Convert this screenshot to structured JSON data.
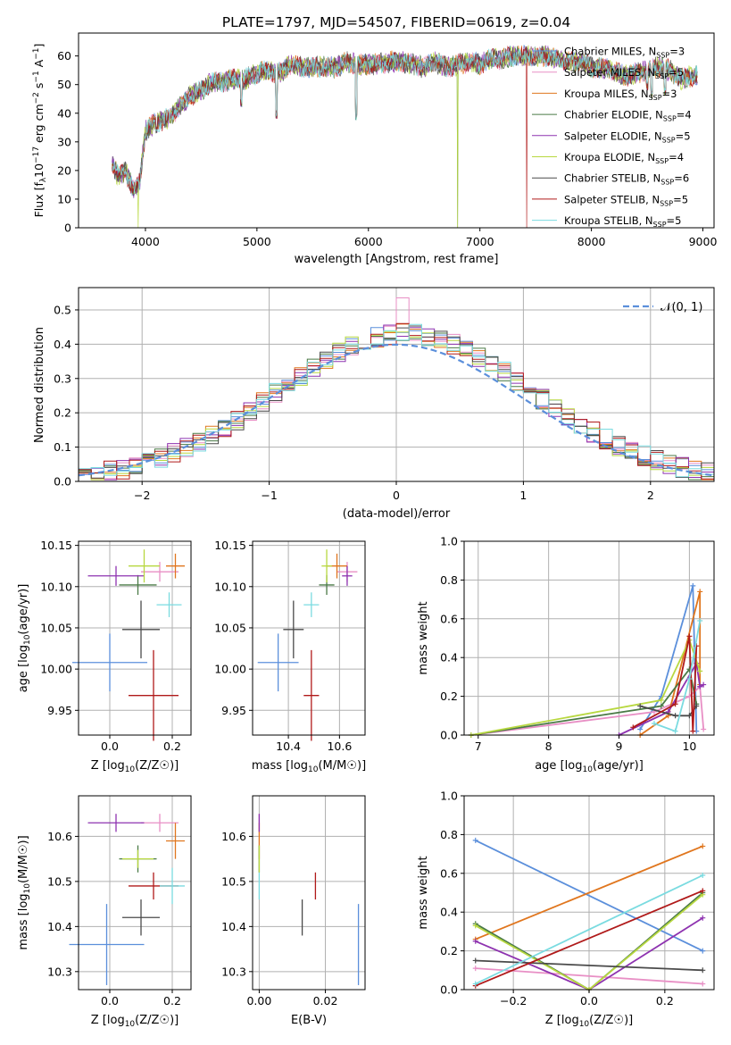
{
  "figure": {
    "title": "PLATE=1797, MJD=54507, FIBERID=0619, z=0.04"
  },
  "colors": {
    "chabrier_miles": "#5b8fdb",
    "salpeter_miles": "#e88fc5",
    "kroupa_miles": "#e0761e",
    "chabrier_elodie": "#4a7a46",
    "salpeter_elodie": "#8e33b0",
    "kroupa_elodie": "#b8d840",
    "chabrier_stelib": "#4a4a4a",
    "salpeter_stelib": "#b01a1a",
    "kroupa_stelib": "#7adbe0",
    "normal_curve": "#5b8fdb",
    "grid": "#b0b0b0"
  },
  "chart_data": [
    {
      "id": "spectrum",
      "type": "line",
      "xlabel": "wavelength [Angstrom, rest frame]",
      "ylabel": "Flux [f_λ 10^-17 erg cm^-2 s^-1 A^-1]",
      "xlim": [
        3400,
        9100
      ],
      "ylim": [
        0,
        68
      ],
      "xticks": [
        4000,
        5000,
        6000,
        7000,
        8000,
        9000
      ],
      "yticks": [
        0,
        10,
        20,
        30,
        40,
        50,
        60
      ],
      "grid": false,
      "legend_position": "right",
      "anchors": [
        [
          3700,
          22
        ],
        [
          3760,
          18
        ],
        [
          3820,
          20
        ],
        [
          3860,
          16
        ],
        [
          3900,
          13
        ],
        [
          3950,
          16
        ],
        [
          4000,
          34
        ],
        [
          4100,
          37
        ],
        [
          4200,
          38
        ],
        [
          4300,
          42
        ],
        [
          4400,
          46
        ],
        [
          4500,
          48
        ],
        [
          4600,
          51
        ],
        [
          4700,
          51
        ],
        [
          4800,
          52
        ],
        [
          4900,
          52
        ],
        [
          5000,
          54
        ],
        [
          5100,
          55
        ],
        [
          5200,
          54
        ],
        [
          5300,
          57
        ],
        [
          5400,
          56
        ],
        [
          5500,
          56
        ],
        [
          5600,
          56
        ],
        [
          5700,
          56
        ],
        [
          5800,
          58
        ],
        [
          5900,
          57
        ],
        [
          6000,
          57
        ],
        [
          6100,
          57
        ],
        [
          6200,
          58
        ],
        [
          6300,
          58
        ],
        [
          6400,
          57
        ],
        [
          6500,
          56
        ],
        [
          6600,
          58
        ],
        [
          6700,
          56
        ],
        [
          6800,
          57
        ],
        [
          6900,
          58
        ],
        [
          7000,
          57
        ],
        [
          7100,
          59
        ],
        [
          7200,
          59
        ],
        [
          7300,
          60
        ],
        [
          7400,
          60
        ],
        [
          7500,
          60
        ],
        [
          7600,
          60
        ],
        [
          7700,
          59
        ],
        [
          7800,
          58
        ],
        [
          7900,
          58
        ],
        [
          8000,
          56
        ],
        [
          8100,
          56
        ],
        [
          8200,
          55
        ],
        [
          8300,
          53
        ],
        [
          8400,
          54
        ],
        [
          8500,
          55
        ],
        [
          8600,
          56
        ],
        [
          8700,
          55
        ],
        [
          8800,
          52
        ],
        [
          8900,
          53
        ],
        [
          8950,
          53
        ]
      ],
      "dips": [
        [
          3935,
          0
        ],
        [
          4102,
          33
        ],
        [
          4861,
          42
        ],
        [
          5175,
          38
        ],
        [
          5890,
          37
        ],
        [
          6800,
          0
        ],
        [
          7420,
          0
        ],
        [
          8498,
          48
        ],
        [
          8542,
          45
        ],
        [
          8662,
          46
        ]
      ],
      "series": [
        {
          "name": "Chabrier MILES, N_SSP=3",
          "name_main": "Chabrier MILES, N",
          "name_sub": "SSP",
          "name_tail": "=3"
        },
        {
          "name": "Salpeter MILES, N_SSP=5",
          "name_main": "Salpeter MILES, N",
          "name_sub": "SSP",
          "name_tail": "=5"
        },
        {
          "name": "Kroupa MILES, N_SSP=3",
          "name_main": "Kroupa MILES, N",
          "name_sub": "SSP",
          "name_tail": "=3"
        },
        {
          "name": "Chabrier ELODIE, N_SSP=4",
          "name_main": "Chabrier ELODIE, N",
          "name_sub": "SSP",
          "name_tail": "=4"
        },
        {
          "name": "Salpeter ELODIE, N_SSP=5",
          "name_main": "Salpeter ELODIE, N",
          "name_sub": "SSP",
          "name_tail": "=5"
        },
        {
          "name": "Kroupa ELODIE, N_SSP=4",
          "name_main": "Kroupa ELODIE, N",
          "name_sub": "SSP",
          "name_tail": "=4"
        },
        {
          "name": "Chabrier STELIB, N_SSP=6",
          "name_main": "Chabrier STELIB, N",
          "name_sub": "SSP",
          "name_tail": "=6"
        },
        {
          "name": "Salpeter STELIB, N_SSP=5",
          "name_main": "Salpeter STELIB, N",
          "name_sub": "SSP",
          "name_tail": "=5"
        },
        {
          "name": "Kroupa STELIB, N_SSP=5",
          "name_main": "Kroupa STELIB, N",
          "name_sub": "SSP",
          "name_tail": "=5"
        }
      ]
    },
    {
      "id": "residuals",
      "type": "line",
      "xlabel": "(data-model)/error",
      "ylabel": "Normed distribution",
      "xlim": [
        -2.5,
        2.5
      ],
      "ylim": [
        0,
        0.565
      ],
      "xticks": [
        -2,
        -1,
        0,
        1,
        2
      ],
      "yticks": [
        0.0,
        0.1,
        0.2,
        0.3,
        0.4,
        0.5
      ],
      "grid": true,
      "legend_position": "top-right",
      "legend_label": "𝒩(0, 1)",
      "bin_width": 0.1,
      "bin_start": -2.5
    },
    {
      "id": "age_vs_Z",
      "type": "scatter",
      "xlabel_main": "Z [log",
      "xlabel_sub": "10",
      "xlabel_tail": "(Z/Z☉)]",
      "ylabel_main": "age  [log",
      "ylabel_sub": "10",
      "ylabel_tail": "(age/yr)]",
      "xlim": [
        -0.1,
        0.26
      ],
      "ylim": [
        9.92,
        10.155
      ],
      "xticks": [
        0.0,
        0.2
      ],
      "yticks": [
        9.95,
        10.0,
        10.05,
        10.1,
        10.15
      ],
      "grid": true,
      "points": [
        {
          "x": 0.0,
          "y": 10.008,
          "xerr": 0.12,
          "yerr": 0.035,
          "series": 0
        },
        {
          "x": 0.16,
          "y": 10.118,
          "xerr": 0.06,
          "yerr": 0.012,
          "series": 1
        },
        {
          "x": 0.21,
          "y": 10.125,
          "xerr": 0.03,
          "yerr": 0.015,
          "series": 2
        },
        {
          "x": 0.09,
          "y": 10.102,
          "xerr": 0.06,
          "yerr": 0.012,
          "series": 3
        },
        {
          "x": 0.02,
          "y": 10.113,
          "xerr": 0.09,
          "yerr": 0.012,
          "series": 4
        },
        {
          "x": 0.11,
          "y": 10.125,
          "xerr": 0.05,
          "yerr": 0.02,
          "series": 5
        },
        {
          "x": 0.1,
          "y": 10.048,
          "xerr": 0.06,
          "yerr": 0.035,
          "series": 6
        },
        {
          "x": 0.14,
          "y": 9.968,
          "xerr": 0.08,
          "yerr": 0.055,
          "series": 7
        },
        {
          "x": 0.19,
          "y": 10.078,
          "xerr": 0.04,
          "yerr": 0.015,
          "series": 8
        }
      ]
    },
    {
      "id": "age_vs_mass",
      "type": "scatter",
      "xlabel_main": "mass [log",
      "xlabel_sub": "10",
      "xlabel_tail": "(M/M☉)]",
      "xlim": [
        10.26,
        10.7
      ],
      "ylim": [
        9.92,
        10.155
      ],
      "xticks": [
        10.4,
        10.6
      ],
      "yticks": [
        9.95,
        10.0,
        10.05,
        10.1,
        10.15
      ],
      "grid": true,
      "points": [
        {
          "x": 10.36,
          "y": 10.008,
          "xerr": 0.08,
          "yerr": 0.035,
          "series": 0
        },
        {
          "x": 10.63,
          "y": 10.118,
          "xerr": 0.04,
          "yerr": 0.012,
          "series": 1
        },
        {
          "x": 10.59,
          "y": 10.125,
          "xerr": 0.04,
          "yerr": 0.015,
          "series": 2
        },
        {
          "x": 10.55,
          "y": 10.102,
          "xerr": 0.03,
          "yerr": 0.012,
          "series": 3
        },
        {
          "x": 10.63,
          "y": 10.113,
          "xerr": 0.02,
          "yerr": 0.012,
          "series": 4
        },
        {
          "x": 10.55,
          "y": 10.125,
          "xerr": 0.02,
          "yerr": 0.02,
          "series": 5
        },
        {
          "x": 10.42,
          "y": 10.048,
          "xerr": 0.04,
          "yerr": 0.035,
          "series": 6
        },
        {
          "x": 10.49,
          "y": 9.968,
          "xerr": 0.03,
          "yerr": 0.055,
          "series": 7
        },
        {
          "x": 10.49,
          "y": 10.078,
          "xerr": 0.03,
          "yerr": 0.015,
          "series": 8
        }
      ]
    },
    {
      "id": "weight_vs_age",
      "type": "line",
      "xlabel_main": "age  [log",
      "xlabel_sub": "10",
      "xlabel_tail": "(age/yr)]",
      "ylabel": "mass weight",
      "xlim": [
        6.8,
        10.35
      ],
      "ylim": [
        0,
        1.0
      ],
      "xticks": [
        7,
        8,
        9,
        10
      ],
      "yticks": [
        0.0,
        0.2,
        0.4,
        0.6,
        0.8,
        1.0
      ],
      "grid": true,
      "series": [
        {
          "x": [
            9.3,
            9.6,
            10.05,
            10.1
          ],
          "y": [
            0.03,
            0.2,
            0.77,
            0.02
          ]
        },
        {
          "x": [
            6.9,
            9.5,
            10.0,
            10.15,
            10.2
          ],
          "y": [
            0.0,
            0.12,
            0.2,
            0.25,
            0.03
          ]
        },
        {
          "x": [
            9.3,
            9.7,
            10.15,
            10.15
          ],
          "y": [
            0.0,
            0.1,
            0.74,
            0.26
          ]
        },
        {
          "x": [
            6.9,
            9.6,
            10.0,
            10.1
          ],
          "y": [
            0.0,
            0.15,
            0.34,
            0.16
          ]
        },
        {
          "x": [
            9.0,
            9.7,
            10.1,
            10.15,
            10.2
          ],
          "y": [
            0.0,
            0.12,
            0.37,
            0.25,
            0.26
          ]
        },
        {
          "x": [
            6.9,
            9.6,
            10.0,
            10.15
          ],
          "y": [
            0.0,
            0.18,
            0.49,
            0.33
          ]
        },
        {
          "x": [
            9.3,
            9.8,
            10.0,
            10.1
          ],
          "y": [
            0.15,
            0.1,
            0.1,
            0.15
          ]
        },
        {
          "x": [
            9.2,
            9.8,
            10.0,
            10.05,
            10.1
          ],
          "y": [
            0.04,
            0.16,
            0.51,
            0.02,
            0.46
          ]
        },
        {
          "x": [
            9.5,
            9.8,
            10.0,
            10.15
          ],
          "y": [
            0.06,
            0.02,
            0.29,
            0.59
          ]
        }
      ]
    },
    {
      "id": "mass_vs_Z",
      "type": "scatter",
      "xlabel_main": "Z [log",
      "xlabel_sub": "10",
      "xlabel_tail": "(Z/Z☉)]",
      "ylabel_main": "mass [log",
      "ylabel_sub": "10",
      "ylabel_tail": "(M/M☉)]",
      "xlim": [
        -0.1,
        0.26
      ],
      "ylim": [
        10.26,
        10.69
      ],
      "xticks": [
        0.0,
        0.2
      ],
      "yticks": [
        10.3,
        10.4,
        10.5,
        10.6
      ],
      "grid": true,
      "points": [
        {
          "x": -0.01,
          "y": 10.36,
          "xerr": 0.12,
          "yerr": 0.09,
          "series": 0
        },
        {
          "x": 0.16,
          "y": 10.63,
          "xerr": 0.06,
          "yerr": 0.02,
          "series": 1
        },
        {
          "x": 0.21,
          "y": 10.59,
          "xerr": 0.03,
          "yerr": 0.04,
          "series": 2
        },
        {
          "x": 0.09,
          "y": 10.55,
          "xerr": 0.06,
          "yerr": 0.03,
          "series": 3
        },
        {
          "x": 0.02,
          "y": 10.63,
          "xerr": 0.09,
          "yerr": 0.02,
          "series": 4
        },
        {
          "x": 0.09,
          "y": 10.55,
          "xerr": 0.05,
          "yerr": 0.02,
          "series": 5
        },
        {
          "x": 0.1,
          "y": 10.42,
          "xerr": 0.06,
          "yerr": 0.04,
          "series": 6
        },
        {
          "x": 0.14,
          "y": 10.49,
          "xerr": 0.08,
          "yerr": 0.03,
          "series": 7
        },
        {
          "x": 0.2,
          "y": 10.49,
          "xerr": 0.04,
          "yerr": 0.04,
          "series": 8
        }
      ]
    },
    {
      "id": "mass_vs_EBV",
      "type": "scatter",
      "xlabel": "E(B-V)",
      "xlim": [
        -0.002,
        0.032
      ],
      "ylim": [
        10.26,
        10.69
      ],
      "xticks": [
        0.0,
        0.02
      ],
      "yticks": [
        10.3,
        10.4,
        10.5,
        10.6
      ],
      "grid": true,
      "points": [
        {
          "x": 0.03,
          "y": 10.36,
          "yerr": 0.09,
          "series": 0
        },
        {
          "x": 0.0,
          "y": 10.63,
          "yerr": 0.02,
          "series": 1
        },
        {
          "x": 0.0,
          "y": 10.59,
          "yerr": 0.04,
          "series": 2
        },
        {
          "x": 0.0,
          "y": 10.55,
          "yerr": 0.03,
          "series": 3
        },
        {
          "x": 0.0,
          "y": 10.63,
          "yerr": 0.02,
          "series": 4
        },
        {
          "x": 0.0,
          "y": 10.55,
          "yerr": 0.03,
          "series": 5
        },
        {
          "x": 0.013,
          "y": 10.42,
          "yerr": 0.04,
          "series": 6
        },
        {
          "x": 0.017,
          "y": 10.49,
          "yerr": 0.03,
          "series": 7
        },
        {
          "x": 0.0,
          "y": 10.49,
          "yerr": 0.03,
          "series": 8
        }
      ]
    },
    {
      "id": "weight_vs_Z",
      "type": "line",
      "xlabel_main": "Z [log",
      "xlabel_sub": "10",
      "xlabel_tail": "(Z/Z☉)]",
      "ylabel": "mass weight",
      "xlim": [
        -0.33,
        0.33
      ],
      "ylim": [
        0,
        1.0
      ],
      "xticks": [
        -0.2,
        0.0,
        0.2
      ],
      "yticks": [
        0.0,
        0.2,
        0.4,
        0.6,
        0.8,
        1.0
      ],
      "grid": true,
      "series": [
        {
          "x": [
            -0.3,
            0.3
          ],
          "y": [
            0.77,
            0.2
          ]
        },
        {
          "x": [
            -0.3,
            0.3
          ],
          "y": [
            0.11,
            0.03
          ]
        },
        {
          "x": [
            -0.3,
            0.3
          ],
          "y": [
            0.26,
            0.74
          ]
        },
        {
          "x": [
            -0.3,
            0.0,
            0.3
          ],
          "y": [
            0.34,
            0.0,
            0.5
          ]
        },
        {
          "x": [
            -0.3,
            0.0,
            0.3
          ],
          "y": [
            0.25,
            0.0,
            0.37
          ]
        },
        {
          "x": [
            -0.3,
            0.0,
            0.3
          ],
          "y": [
            0.33,
            0.0,
            0.49
          ]
        },
        {
          "x": [
            -0.3,
            0.3
          ],
          "y": [
            0.15,
            0.1
          ]
        },
        {
          "x": [
            -0.3,
            0.3
          ],
          "y": [
            0.02,
            0.51
          ]
        },
        {
          "x": [
            -0.3,
            0.3
          ],
          "y": [
            0.03,
            0.59
          ]
        }
      ]
    }
  ]
}
